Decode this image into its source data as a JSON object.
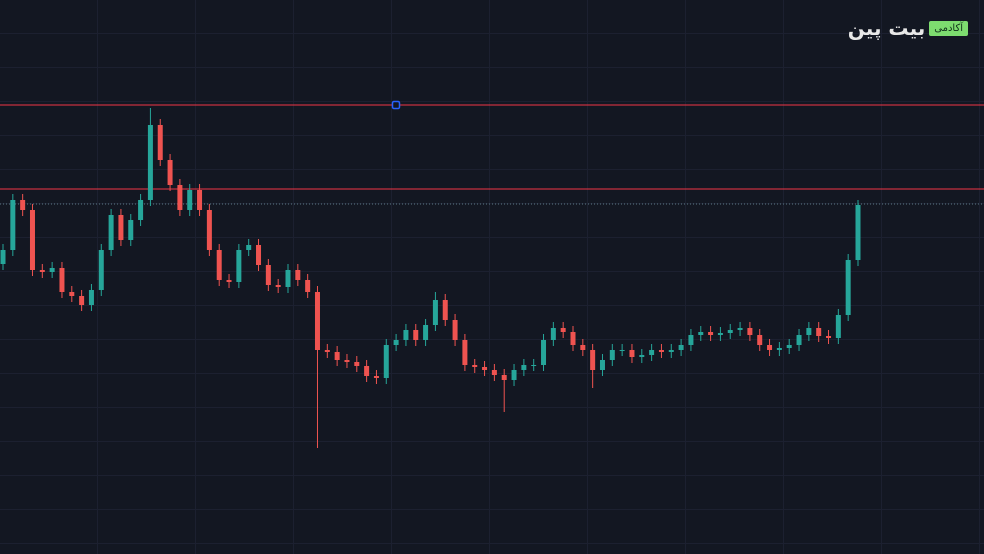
{
  "chart_data": {
    "type": "candlestick",
    "watermark": {
      "brand": "بیت پین",
      "badge": "آکادمی"
    },
    "ylim": [
      0,
      554
    ],
    "up_color": "#26a69a",
    "down_color": "#ef5350",
    "levels": [
      {
        "value": 449,
        "color": "#f23645",
        "style": "solid"
      },
      {
        "value": 365,
        "color": "#f23645",
        "style": "solid"
      },
      {
        "value": 350,
        "color": "#5d7a86",
        "style": "dotted"
      }
    ],
    "open": [
      290,
      304,
      354,
      344,
      284,
      282,
      286,
      262,
      258,
      249,
      264,
      304,
      339,
      314,
      334,
      354,
      429,
      394,
      369,
      344,
      364,
      344,
      304,
      274,
      272,
      304,
      309,
      289,
      269,
      267,
      284,
      274,
      262,
      204,
      202,
      194,
      192,
      188,
      178,
      176,
      209,
      214,
      224,
      214,
      229,
      254,
      234,
      214,
      189,
      187,
      184,
      179,
      174,
      184,
      189,
      189,
      214,
      226,
      222,
      209,
      204,
      184,
      194,
      204,
      204,
      197,
      199,
      204,
      202,
      204,
      209,
      219,
      222,
      219,
      221,
      224,
      226,
      219,
      209,
      204,
      206,
      209,
      219,
      226,
      218,
      216,
      239,
      294
    ],
    "high": [
      310,
      360,
      360,
      350,
      290,
      292,
      292,
      268,
      264,
      270,
      310,
      345,
      345,
      340,
      360,
      446,
      435,
      400,
      375,
      370,
      370,
      350,
      310,
      280,
      310,
      315,
      315,
      295,
      275,
      290,
      290,
      280,
      268,
      210,
      208,
      200,
      198,
      194,
      184,
      215,
      220,
      230,
      230,
      235,
      262,
      260,
      240,
      220,
      195,
      193,
      190,
      185,
      190,
      195,
      195,
      220,
      232,
      232,
      228,
      215,
      210,
      200,
      210,
      210,
      210,
      205,
      210,
      210,
      210,
      215,
      225,
      228,
      228,
      227,
      230,
      232,
      232,
      225,
      215,
      212,
      215,
      225,
      232,
      232,
      224,
      245,
      300,
      354
    ],
    "low": [
      284,
      298,
      338,
      278,
      276,
      276,
      256,
      252,
      243,
      243,
      258,
      298,
      308,
      308,
      328,
      348,
      388,
      363,
      338,
      338,
      338,
      298,
      268,
      266,
      266,
      298,
      283,
      263,
      261,
      261,
      268,
      256,
      106,
      196,
      188,
      186,
      182,
      172,
      170,
      170,
      203,
      208,
      208,
      208,
      223,
      228,
      208,
      183,
      181,
      178,
      173,
      142,
      168,
      178,
      183,
      183,
      208,
      216,
      203,
      198,
      166,
      178,
      188,
      198,
      191,
      191,
      193,
      196,
      196,
      198,
      203,
      213,
      213,
      213,
      215,
      218,
      213,
      203,
      198,
      198,
      200,
      203,
      213,
      212,
      210,
      210,
      233,
      288
    ],
    "close": [
      304,
      354,
      344,
      284,
      282,
      286,
      262,
      258,
      249,
      264,
      304,
      339,
      314,
      334,
      354,
      429,
      394,
      369,
      344,
      364,
      344,
      304,
      274,
      272,
      304,
      309,
      289,
      269,
      267,
      284,
      274,
      262,
      204,
      202,
      194,
      192,
      188,
      178,
      176,
      209,
      214,
      224,
      214,
      229,
      254,
      234,
      214,
      189,
      187,
      184,
      179,
      174,
      184,
      189,
      189,
      214,
      226,
      222,
      209,
      204,
      184,
      194,
      204,
      204,
      197,
      199,
      204,
      202,
      204,
      209,
      219,
      222,
      219,
      221,
      224,
      226,
      219,
      209,
      204,
      206,
      209,
      219,
      226,
      218,
      216,
      239,
      294,
      349
    ]
  }
}
